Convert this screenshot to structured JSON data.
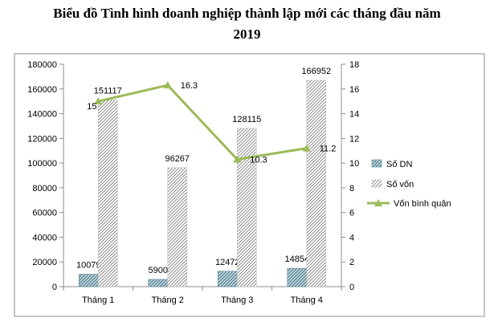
{
  "title_line1": "Biểu đồ Tình hình doanh nghiệp thành lập mới các tháng đầu năm",
  "title_line2": "2019",
  "chart_data": {
    "type": "bar",
    "categories": [
      "Tháng 1",
      "Tháng 2",
      "Tháng 3",
      "Tháng 4"
    ],
    "series": [
      {
        "name": "Số DN",
        "type": "bar",
        "axis": "left",
        "values": [
          10079,
          5900,
          12472,
          14854
        ],
        "color": "#5b8a99"
      },
      {
        "name": "Số vốn",
        "type": "bar",
        "axis": "left",
        "values": [
          151117,
          96267,
          128115,
          166952
        ],
        "color": "#8a8a8a"
      },
      {
        "name": "Vốn bình quân",
        "type": "line",
        "axis": "right",
        "values": [
          15,
          16.3,
          10.3,
          11.2
        ],
        "color": "#9bbb59"
      }
    ],
    "ylim_left": [
      0,
      180000
    ],
    "yticks_left": [
      "0",
      "20000",
      "40000",
      "60000",
      "80000",
      "100000",
      "120000",
      "140000",
      "160000",
      "180000"
    ],
    "ylim_right": [
      0,
      18
    ],
    "yticks_right": [
      "0",
      "2",
      "4",
      "6",
      "8",
      "10",
      "12",
      "14",
      "16",
      "18"
    ],
    "bar_labels": {
      "Số DN": [
        "10079",
        "5900",
        "12472",
        "14854"
      ],
      "Số vốn": [
        "151117",
        "96267",
        "128115",
        "166952"
      ]
    },
    "line_labels": [
      "15",
      "16.3",
      "10.3",
      "11.2"
    ],
    "legend_position": "right",
    "grid": false
  }
}
